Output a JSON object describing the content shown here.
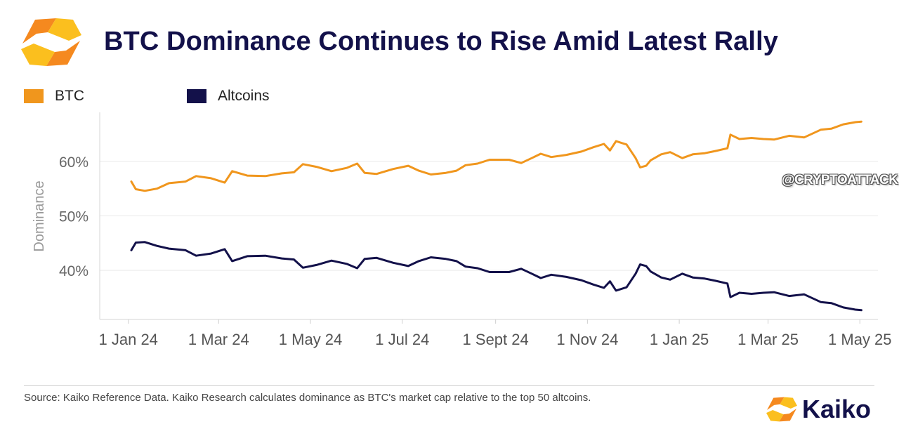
{
  "header": {
    "title": "BTC Dominance Continues to Rise Amid Latest Rally",
    "logo_icon": "kaiko-logo-icon"
  },
  "watermark": "@CRYPTOATTACK",
  "footer": {
    "source": "Source: Kaiko Reference Data. Kaiko Research calculates dominance as BTC's market cap relative to the top 50 altcoins.",
    "brand": "Kaiko"
  },
  "colors": {
    "btc": "#f0961d",
    "altcoins": "#13114a",
    "brand_orange": "#f5891f",
    "brand_yellow": "#fbbf1e",
    "grid": "#e9e9e9",
    "axis_text": "#555555"
  },
  "chart_data": {
    "type": "line",
    "title": "BTC Dominance Continues to Rise Amid Latest Rally",
    "xlabel": "",
    "ylabel": "Dominance",
    "ylim": [
      31,
      69
    ],
    "xlim": [
      "2023-12-13",
      "2025-05-13"
    ],
    "grid": true,
    "legend_position": "top-left",
    "y_ticks": [
      {
        "value": 40,
        "label": "40%"
      },
      {
        "value": 50,
        "label": "50%"
      },
      {
        "value": 60,
        "label": "60%"
      }
    ],
    "x_ticks": [
      {
        "date": "2024-01-01",
        "label": "1 Jan 24"
      },
      {
        "date": "2024-03-01",
        "label": "1 Mar 24"
      },
      {
        "date": "2024-05-01",
        "label": "1 May 24"
      },
      {
        "date": "2024-07-01",
        "label": "1 Jul 24"
      },
      {
        "date": "2024-09-01",
        "label": "1 Sept 24"
      },
      {
        "date": "2024-11-01",
        "label": "1 Nov 24"
      },
      {
        "date": "2025-01-01",
        "label": "1 Jan 25"
      },
      {
        "date": "2025-03-01",
        "label": "1 Mar 25"
      },
      {
        "date": "2025-05-01",
        "label": "1 May 25"
      }
    ],
    "series": [
      {
        "name": "BTC",
        "color": "#f0961d",
        "points": [
          [
            "2024-01-03",
            56.3
          ],
          [
            "2024-01-06",
            54.9
          ],
          [
            "2024-01-12",
            54.6
          ],
          [
            "2024-01-20",
            55.0
          ],
          [
            "2024-01-28",
            56.0
          ],
          [
            "2024-02-08",
            56.3
          ],
          [
            "2024-02-15",
            57.3
          ],
          [
            "2024-02-25",
            56.9
          ],
          [
            "2024-03-05",
            56.1
          ],
          [
            "2024-03-10",
            58.2
          ],
          [
            "2024-03-20",
            57.4
          ],
          [
            "2024-04-01",
            57.3
          ],
          [
            "2024-04-12",
            57.8
          ],
          [
            "2024-04-20",
            58.0
          ],
          [
            "2024-04-26",
            59.5
          ],
          [
            "2024-05-05",
            59.0
          ],
          [
            "2024-05-15",
            58.2
          ],
          [
            "2024-05-25",
            58.8
          ],
          [
            "2024-06-01",
            59.6
          ],
          [
            "2024-06-06",
            57.9
          ],
          [
            "2024-06-14",
            57.7
          ],
          [
            "2024-06-25",
            58.6
          ],
          [
            "2024-07-05",
            59.2
          ],
          [
            "2024-07-12",
            58.3
          ],
          [
            "2024-07-20",
            57.6
          ],
          [
            "2024-07-30",
            57.9
          ],
          [
            "2024-08-06",
            58.3
          ],
          [
            "2024-08-12",
            59.3
          ],
          [
            "2024-08-20",
            59.6
          ],
          [
            "2024-08-28",
            60.3
          ],
          [
            "2024-09-10",
            60.3
          ],
          [
            "2024-09-18",
            59.7
          ],
          [
            "2024-09-25",
            60.6
          ],
          [
            "2024-10-01",
            61.4
          ],
          [
            "2024-10-08",
            60.8
          ],
          [
            "2024-10-18",
            61.2
          ],
          [
            "2024-10-28",
            61.8
          ],
          [
            "2024-11-05",
            62.6
          ],
          [
            "2024-11-12",
            63.2
          ],
          [
            "2024-11-16",
            62.0
          ],
          [
            "2024-11-20",
            63.7
          ],
          [
            "2024-11-27",
            63.1
          ],
          [
            "2024-12-03",
            60.6
          ],
          [
            "2024-12-06",
            58.9
          ],
          [
            "2024-12-10",
            59.2
          ],
          [
            "2024-12-13",
            60.2
          ],
          [
            "2024-12-20",
            61.3
          ],
          [
            "2024-12-26",
            61.7
          ],
          [
            "2025-01-03",
            60.6
          ],
          [
            "2025-01-10",
            61.3
          ],
          [
            "2025-01-18",
            61.5
          ],
          [
            "2025-01-25",
            61.9
          ],
          [
            "2025-02-02",
            62.4
          ],
          [
            "2025-02-04",
            64.9
          ],
          [
            "2025-02-10",
            64.1
          ],
          [
            "2025-02-18",
            64.3
          ],
          [
            "2025-02-26",
            64.1
          ],
          [
            "2025-03-05",
            64.0
          ],
          [
            "2025-03-15",
            64.7
          ],
          [
            "2025-03-25",
            64.4
          ],
          [
            "2025-04-05",
            65.8
          ],
          [
            "2025-04-12",
            66.0
          ],
          [
            "2025-04-20",
            66.8
          ],
          [
            "2025-04-28",
            67.2
          ],
          [
            "2025-05-02",
            67.3
          ]
        ]
      },
      {
        "name": "Altcoins",
        "color": "#13114a",
        "points": [
          [
            "2024-01-03",
            43.7
          ],
          [
            "2024-01-06",
            45.1
          ],
          [
            "2024-01-12",
            45.2
          ],
          [
            "2024-01-20",
            44.5
          ],
          [
            "2024-01-28",
            44.0
          ],
          [
            "2024-02-08",
            43.7
          ],
          [
            "2024-02-15",
            42.7
          ],
          [
            "2024-02-25",
            43.1
          ],
          [
            "2024-03-05",
            43.9
          ],
          [
            "2024-03-10",
            41.7
          ],
          [
            "2024-03-20",
            42.6
          ],
          [
            "2024-04-01",
            42.7
          ],
          [
            "2024-04-12",
            42.2
          ],
          [
            "2024-04-20",
            42.0
          ],
          [
            "2024-04-26",
            40.5
          ],
          [
            "2024-05-05",
            41.0
          ],
          [
            "2024-05-15",
            41.8
          ],
          [
            "2024-05-25",
            41.2
          ],
          [
            "2024-06-01",
            40.4
          ],
          [
            "2024-06-06",
            42.1
          ],
          [
            "2024-06-14",
            42.3
          ],
          [
            "2024-06-25",
            41.4
          ],
          [
            "2024-07-05",
            40.8
          ],
          [
            "2024-07-12",
            41.7
          ],
          [
            "2024-07-20",
            42.4
          ],
          [
            "2024-07-30",
            42.1
          ],
          [
            "2024-08-06",
            41.7
          ],
          [
            "2024-08-12",
            40.7
          ],
          [
            "2024-08-20",
            40.4
          ],
          [
            "2024-08-28",
            39.7
          ],
          [
            "2024-09-10",
            39.7
          ],
          [
            "2024-09-18",
            40.3
          ],
          [
            "2024-09-25",
            39.4
          ],
          [
            "2024-10-01",
            38.6
          ],
          [
            "2024-10-08",
            39.2
          ],
          [
            "2024-10-18",
            38.8
          ],
          [
            "2024-10-28",
            38.2
          ],
          [
            "2024-11-05",
            37.4
          ],
          [
            "2024-11-12",
            36.8
          ],
          [
            "2024-11-16",
            38.0
          ],
          [
            "2024-11-20",
            36.3
          ],
          [
            "2024-11-27",
            36.9
          ],
          [
            "2024-12-03",
            39.4
          ],
          [
            "2024-12-06",
            41.1
          ],
          [
            "2024-12-10",
            40.8
          ],
          [
            "2024-12-13",
            39.8
          ],
          [
            "2024-12-20",
            38.7
          ],
          [
            "2024-12-26",
            38.3
          ],
          [
            "2025-01-03",
            39.4
          ],
          [
            "2025-01-10",
            38.7
          ],
          [
            "2025-01-18",
            38.5
          ],
          [
            "2025-01-25",
            38.1
          ],
          [
            "2025-02-02",
            37.6
          ],
          [
            "2025-02-04",
            35.1
          ],
          [
            "2025-02-10",
            35.9
          ],
          [
            "2025-02-18",
            35.7
          ],
          [
            "2025-02-26",
            35.9
          ],
          [
            "2025-03-05",
            36.0
          ],
          [
            "2025-03-15",
            35.3
          ],
          [
            "2025-03-25",
            35.6
          ],
          [
            "2025-04-05",
            34.2
          ],
          [
            "2025-04-12",
            34.0
          ],
          [
            "2025-04-20",
            33.2
          ],
          [
            "2025-04-28",
            32.8
          ],
          [
            "2025-05-02",
            32.7
          ]
        ]
      }
    ]
  }
}
